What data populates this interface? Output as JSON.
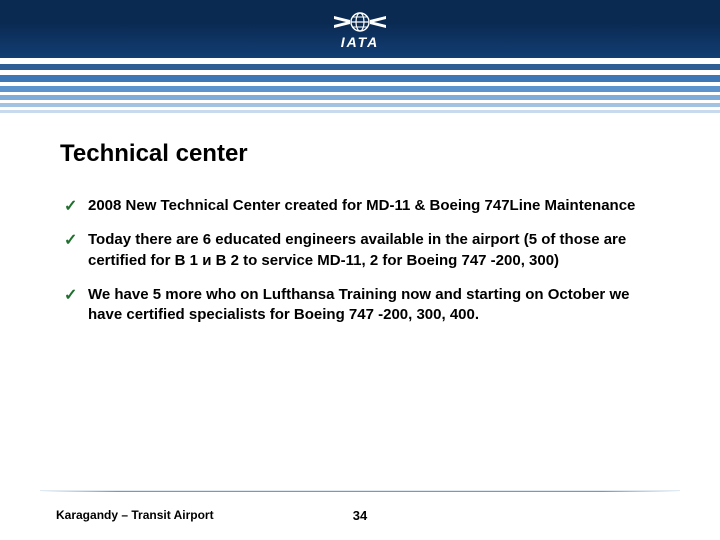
{
  "header": {
    "logo_text": "IATA",
    "band_bg_top": "#0a2a52",
    "band_bg_bottom": "#123e73",
    "stripes": [
      {
        "height": 6,
        "color": "#ffffff"
      },
      {
        "height": 6,
        "color": "#2f5e95"
      },
      {
        "height": 5,
        "color": "#ffffff"
      },
      {
        "height": 7,
        "color": "#3e77b6"
      },
      {
        "height": 4,
        "color": "#ffffff"
      },
      {
        "height": 6,
        "color": "#5c93cc"
      },
      {
        "height": 3,
        "color": "#ffffff"
      },
      {
        "height": 5,
        "color": "#7eabd7"
      },
      {
        "height": 3,
        "color": "#ffffff"
      },
      {
        "height": 4,
        "color": "#a3c3e3"
      },
      {
        "height": 3,
        "color": "#ffffff"
      },
      {
        "height": 3,
        "color": "#c8daed"
      },
      {
        "height": 3,
        "color": "#ffffff"
      }
    ]
  },
  "content": {
    "title": "Technical center",
    "check_color": "#1f6f2e",
    "text_fontsize": 15,
    "title_fontsize": 24,
    "bullets": [
      "2008 New Technical Center created for MD-11 & Boeing 747Line Maintenance",
      "Today there are 6 educated engineers available in the airport (5 of those are certified for B 1 и B 2 to service MD-11, 2 for Boeing 747 -200, 300)",
      "We have 5 more who on Lufthansa Training now and starting on October we have certified specialists for Boeing 747 -200, 300, 400."
    ]
  },
  "footer": {
    "rule_color": "#6b9dc7",
    "left_text": "Karagandy – Transit Airport",
    "page_number": "34",
    "font_size": 12
  }
}
